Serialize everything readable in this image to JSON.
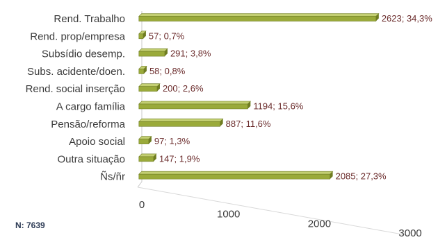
{
  "chart_data": {
    "type": "bar",
    "orientation": "horizontal",
    "categories": [
      "Rend. Trabalho",
      "Rend. prop/empresa",
      "Subsídio desemp.",
      "Subs. acidente/doen.",
      "Rend. social inserção",
      "A cargo família",
      "Pensão/reforma",
      "Apoio social",
      "Outra situação",
      "Ñs/ñr"
    ],
    "values": [
      2623,
      57,
      291,
      58,
      200,
      1194,
      887,
      97,
      147,
      2085
    ],
    "data_labels": [
      "2623; 34,3%",
      "57; 0,7%",
      "291; 3,8%",
      "58; 0,8%",
      "200; 2,6%",
      "1194; 15,6%",
      "887; 11,6%",
      "97; 1,3%",
      "147; 1,9%",
      "2085; 27,3%"
    ],
    "x_ticks": [
      "0",
      "1000",
      "2000",
      "3000"
    ],
    "xlim": [
      0,
      3000
    ],
    "grid": false,
    "legend": "none",
    "bar_color": "#9aaa3a",
    "bar_top_color": "#c3cf72",
    "bar_edge_color": "#6f7c22"
  },
  "note": "N: 7639"
}
